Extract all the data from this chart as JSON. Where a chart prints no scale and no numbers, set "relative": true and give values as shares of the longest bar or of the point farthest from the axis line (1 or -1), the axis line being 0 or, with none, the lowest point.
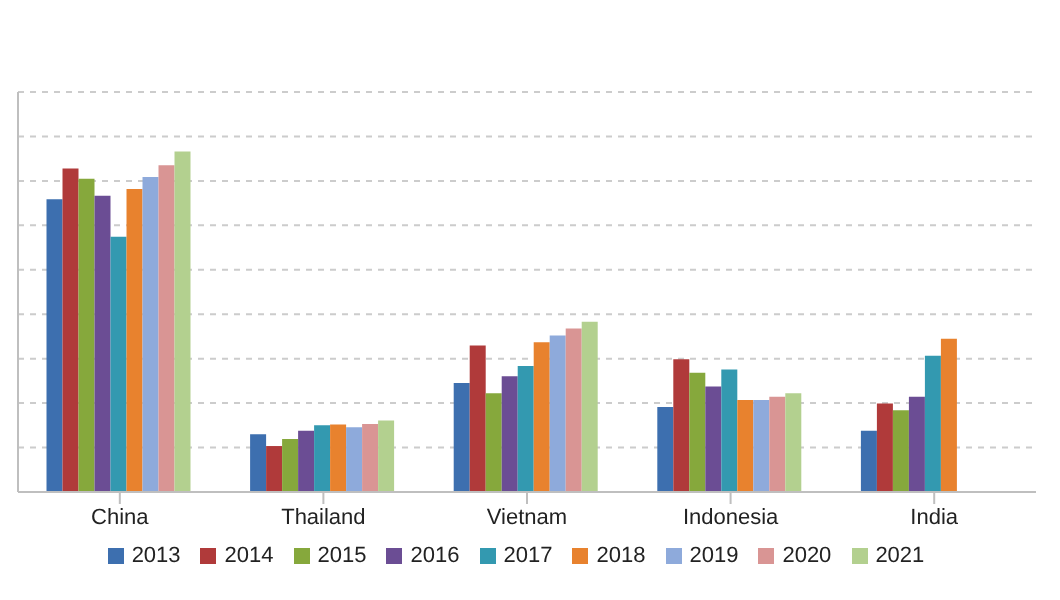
{
  "chart_data": {
    "type": "bar",
    "relative": true,
    "grid": "y",
    "legend": "bottom",
    "categories": [
      "China",
      "Thailand",
      "Vietnam",
      "Indonesia",
      "India"
    ],
    "series": [
      {
        "name": "2013",
        "color": "#3d6faf",
        "values": [
          0.86,
          0.17,
          0.32,
          0.25,
          0.18
        ]
      },
      {
        "name": "2014",
        "color": "#b03a3a",
        "values": [
          0.95,
          0.135,
          0.43,
          0.39,
          0.26
        ]
      },
      {
        "name": "2015",
        "color": "#86a83c",
        "values": [
          0.92,
          0.156,
          0.29,
          0.35,
          0.24
        ]
      },
      {
        "name": "2016",
        "color": "#6b4d94",
        "values": [
          0.87,
          0.18,
          0.34,
          0.31,
          0.28
        ]
      },
      {
        "name": "2017",
        "color": "#3399b0",
        "values": [
          0.75,
          0.196,
          0.37,
          0.36,
          0.4
        ]
      },
      {
        "name": "2018",
        "color": "#e8822e",
        "values": [
          0.89,
          0.198,
          0.44,
          0.27,
          0.45
        ]
      },
      {
        "name": "2019",
        "color": "#8eaadb",
        "values": [
          0.925,
          0.19,
          0.46,
          0.27,
          null
        ]
      },
      {
        "name": "2020",
        "color": "#d99594",
        "values": [
          0.96,
          0.2,
          0.48,
          0.28,
          null
        ]
      },
      {
        "name": "2021",
        "color": "#b3d08f",
        "values": [
          1,
          0.21,
          0.5,
          0.29,
          null
        ]
      }
    ]
  }
}
